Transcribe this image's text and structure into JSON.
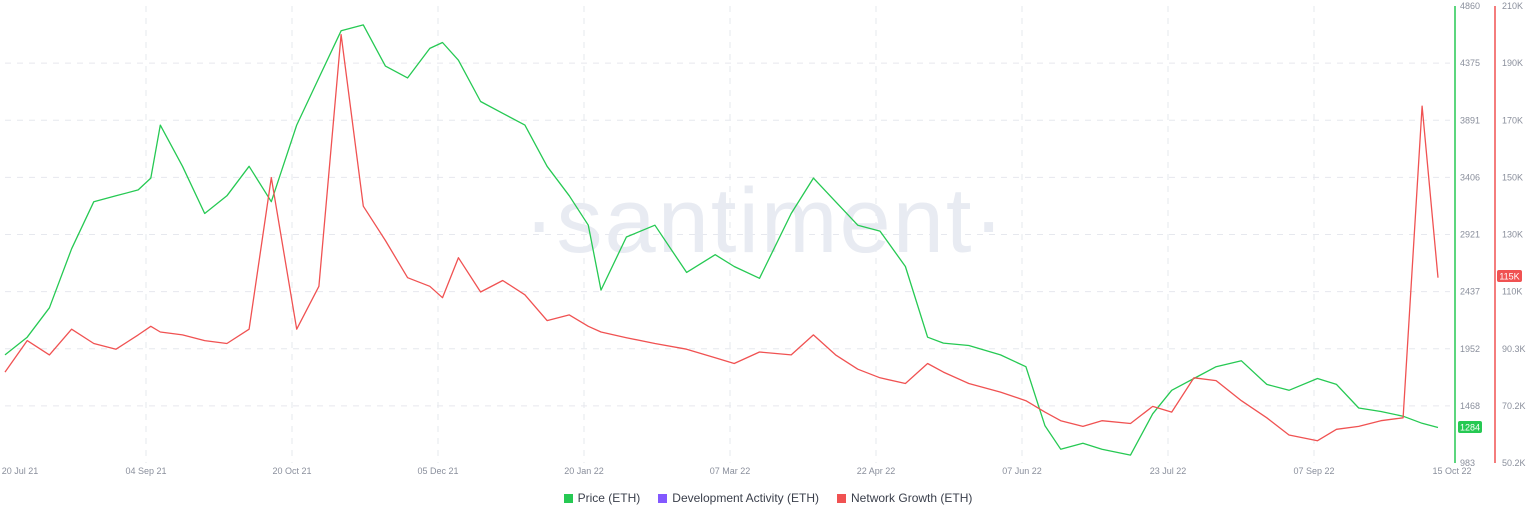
{
  "watermark": "·santiment·",
  "legend": [
    {
      "label": "Price (ETH)",
      "color": "#26c953"
    },
    {
      "label": "Development Activity (ETH)",
      "color": "#8358ff"
    },
    {
      "label": "Network Growth (ETH)",
      "color": "#f05252"
    }
  ],
  "badges": {
    "price_last": "1284",
    "network_last": "115K"
  },
  "chart_data": {
    "type": "line",
    "title": "",
    "x_ticks": [
      "20 Jul 21",
      "04 Sep 21",
      "20 Oct 21",
      "05 Dec 21",
      "20 Jan 22",
      "07 Mar 22",
      "22 Apr 22",
      "07 Jun 22",
      "23 Jul 22",
      "07 Sep 22",
      "15 Oct 22"
    ],
    "left_axis": {
      "series": "Price (ETH)",
      "ticks": [
        "4860",
        "4375",
        "3891",
        "3406",
        "2921",
        "2437",
        "1952",
        "1468",
        "983"
      ],
      "range": [
        983,
        4860
      ]
    },
    "right_axis": {
      "series": "Network Growth (ETH)",
      "ticks": [
        "210K",
        "190K",
        "170K",
        "150K",
        "130K",
        "110K",
        "90.3K",
        "70.2K",
        "50.2K"
      ],
      "range": [
        50200,
        210000
      ]
    },
    "grid": true,
    "legend_position": "bottom-center",
    "series": [
      {
        "name": "Price (ETH)",
        "color": "#26c953",
        "axis": "left",
        "x": [
          "2021-07-20",
          "2021-07-27",
          "2021-08-03",
          "2021-08-10",
          "2021-08-17",
          "2021-08-24",
          "2021-08-31",
          "2021-09-04",
          "2021-09-07",
          "2021-09-14",
          "2021-09-21",
          "2021-09-28",
          "2021-10-05",
          "2021-10-12",
          "2021-10-20",
          "2021-10-27",
          "2021-11-03",
          "2021-11-10",
          "2021-11-17",
          "2021-11-24",
          "2021-12-01",
          "2021-12-05",
          "2021-12-10",
          "2021-12-17",
          "2021-12-24",
          "2021-12-31",
          "2022-01-07",
          "2022-01-14",
          "2022-01-20",
          "2022-01-24",
          "2022-02-01",
          "2022-02-10",
          "2022-02-20",
          "2022-03-01",
          "2022-03-07",
          "2022-03-15",
          "2022-03-25",
          "2022-04-01",
          "2022-04-08",
          "2022-04-15",
          "2022-04-22",
          "2022-04-30",
          "2022-05-07",
          "2022-05-12",
          "2022-05-20",
          "2022-05-30",
          "2022-06-07",
          "2022-06-13",
          "2022-06-18",
          "2022-06-25",
          "2022-07-01",
          "2022-07-10",
          "2022-07-17",
          "2022-07-23",
          "2022-07-30",
          "2022-08-06",
          "2022-08-14",
          "2022-08-22",
          "2022-08-29",
          "2022-09-07",
          "2022-09-13",
          "2022-09-20",
          "2022-09-27",
          "2022-10-04",
          "2022-10-10",
          "2022-10-15"
        ],
        "values": [
          1900,
          2050,
          2300,
          2800,
          3200,
          3250,
          3300,
          3400,
          3850,
          3500,
          3100,
          3250,
          3500,
          3200,
          3850,
          4250,
          4650,
          4700,
          4350,
          4250,
          4500,
          4550,
          4400,
          4050,
          3950,
          3850,
          3500,
          3250,
          3000,
          2450,
          2900,
          3000,
          2600,
          2750,
          2650,
          2550,
          3100,
          3400,
          3200,
          3000,
          2950,
          2650,
          2050,
          2000,
          1980,
          1900,
          1800,
          1300,
          1100,
          1150,
          1100,
          1050,
          1400,
          1600,
          1700,
          1800,
          1850,
          1650,
          1600,
          1700,
          1650,
          1450,
          1420,
          1380,
          1320,
          1284
        ]
      },
      {
        "name": "Network Growth (ETH)",
        "color": "#f05252",
        "axis": "right",
        "x": [
          "2021-07-20",
          "2021-07-27",
          "2021-08-03",
          "2021-08-10",
          "2021-08-17",
          "2021-08-24",
          "2021-08-31",
          "2021-09-04",
          "2021-09-07",
          "2021-09-14",
          "2021-09-21",
          "2021-09-28",
          "2021-10-05",
          "2021-10-12",
          "2021-10-20",
          "2021-10-27",
          "2021-11-03",
          "2021-11-10",
          "2021-11-17",
          "2021-11-24",
          "2021-12-01",
          "2021-12-05",
          "2021-12-10",
          "2021-12-17",
          "2021-12-24",
          "2021-12-31",
          "2022-01-07",
          "2022-01-14",
          "2022-01-20",
          "2022-01-24",
          "2022-02-01",
          "2022-02-10",
          "2022-02-20",
          "2022-03-01",
          "2022-03-07",
          "2022-03-15",
          "2022-03-25",
          "2022-04-01",
          "2022-04-08",
          "2022-04-15",
          "2022-04-22",
          "2022-04-30",
          "2022-05-07",
          "2022-05-12",
          "2022-05-20",
          "2022-05-30",
          "2022-06-07",
          "2022-06-13",
          "2022-06-18",
          "2022-06-25",
          "2022-07-01",
          "2022-07-10",
          "2022-07-17",
          "2022-07-23",
          "2022-07-30",
          "2022-08-06",
          "2022-08-14",
          "2022-08-22",
          "2022-08-29",
          "2022-09-07",
          "2022-09-13",
          "2022-09-20",
          "2022-09-27",
          "2022-10-04",
          "2022-10-10",
          "2022-10-15"
        ],
        "values": [
          82000,
          93000,
          88000,
          97000,
          92000,
          90000,
          95000,
          98000,
          96000,
          95000,
          93000,
          92000,
          97000,
          150000,
          97000,
          112000,
          200000,
          140000,
          128000,
          115000,
          112000,
          108000,
          122000,
          110000,
          114000,
          109000,
          100000,
          102000,
          98000,
          96000,
          94000,
          92000,
          90000,
          87000,
          85000,
          89000,
          88000,
          95000,
          88000,
          83000,
          80000,
          78000,
          85000,
          82000,
          78000,
          75000,
          72000,
          68000,
          65000,
          63000,
          65000,
          64000,
          70000,
          68000,
          80000,
          79000,
          72000,
          66000,
          60000,
          58000,
          62000,
          63000,
          65000,
          66000,
          175000,
          115000
        ]
      },
      {
        "name": "Development Activity (ETH)",
        "color": "#8358ff",
        "axis": "none",
        "values": []
      }
    ]
  }
}
